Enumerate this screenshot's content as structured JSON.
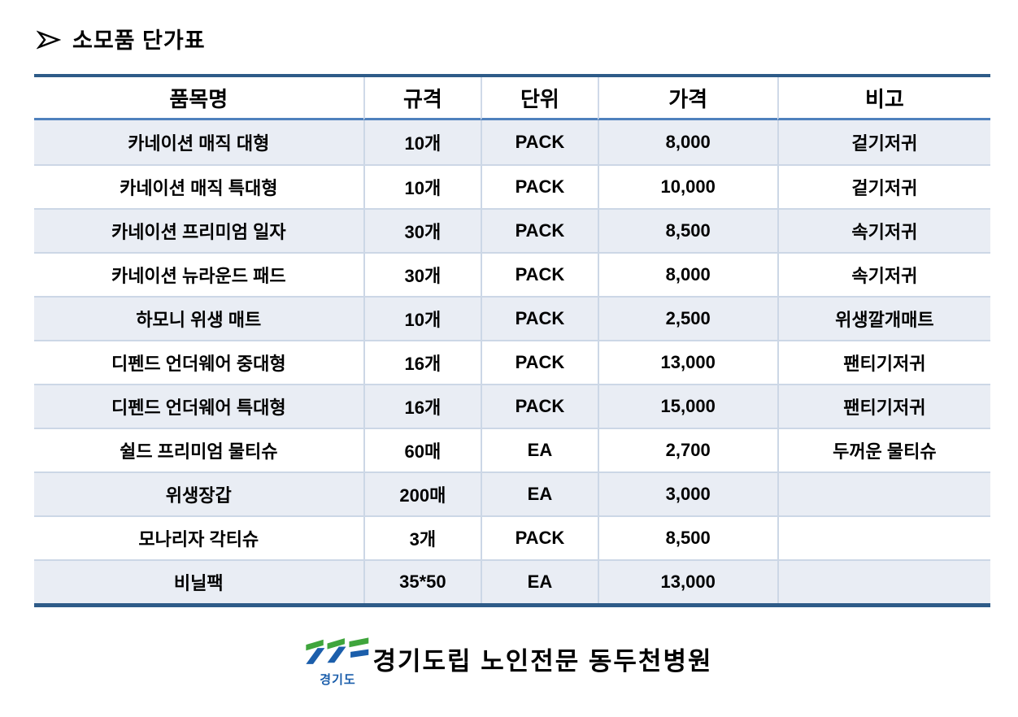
{
  "title": {
    "bullet": "➢",
    "text": "소모품 단가표"
  },
  "table": {
    "columns": [
      "품목명",
      "규격",
      "단위",
      "가격",
      "비고"
    ],
    "rows": [
      {
        "item": "카네이션 매직 대형",
        "spec": "10개",
        "unit": "PACK",
        "price": "8,000",
        "note": "겉기저귀"
      },
      {
        "item": "카네이션 매직 특대형",
        "spec": "10개",
        "unit": "PACK",
        "price": "10,000",
        "note": "겉기저귀"
      },
      {
        "item": "카네이션 프리미엄 일자",
        "spec": "30개",
        "unit": "PACK",
        "price": "8,500",
        "note": "속기저귀"
      },
      {
        "item": "카네이션 뉴라운드 패드",
        "spec": "30개",
        "unit": "PACK",
        "price": "8,000",
        "note": "속기저귀"
      },
      {
        "item": "하모니 위생 매트",
        "spec": "10개",
        "unit": "PACK",
        "price": "2,500",
        "note": "위생깔개매트"
      },
      {
        "item": "디펜드 언더웨어 중대형",
        "spec": "16개",
        "unit": "PACK",
        "price": "13,000",
        "note": "팬티기저귀"
      },
      {
        "item": "디펜드 언더웨어 특대형",
        "spec": "16개",
        "unit": "PACK",
        "price": "15,000",
        "note": "팬티기저귀"
      },
      {
        "item": "쉴드 프리미엄 물티슈",
        "spec": "60매",
        "unit": "EA",
        "price": "2,700",
        "note": "두꺼운 물티슈"
      },
      {
        "item": "위생장갑",
        "spec": "200매",
        "unit": "EA",
        "price": "3,000",
        "note": ""
      },
      {
        "item": "모나리자 각티슈",
        "spec": "3개",
        "unit": "PACK",
        "price": "8,500",
        "note": ""
      },
      {
        "item": "비닐팩",
        "spec": "35*50",
        "unit": "EA",
        "price": "13,000",
        "note": ""
      }
    ]
  },
  "footer": {
    "logo_caption": "경기도",
    "hospital_name": "경기도립 노인전문 동두천병원"
  },
  "colors": {
    "table_border_dark": "#2E5B88",
    "header_rule_blue": "#4F81BD",
    "band_row_fill": "#E9EDF4",
    "cell_separator": "#CCD7E6",
    "logo_green": "#3FA53C",
    "logo_blue": "#1B5EAB",
    "text": "#000000"
  }
}
